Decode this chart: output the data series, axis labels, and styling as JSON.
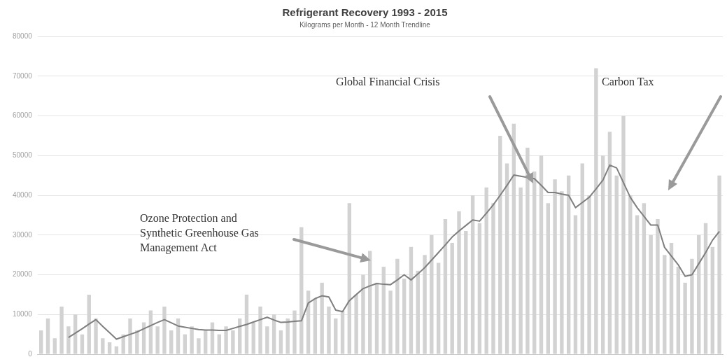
{
  "chart_data": {
    "type": "bar",
    "title": "Refrigerant Recovery 1993 - 2015",
    "subtitle": "Kilograms per Month - 12 Month Trendline",
    "categories": [
      null,
      null,
      null,
      null,
      null,
      null,
      null,
      null,
      null,
      null,
      null,
      null,
      null,
      null,
      null,
      null,
      null,
      null,
      null,
      null,
      null,
      null,
      null,
      null,
      null,
      null,
      null,
      null,
      null,
      null,
      null,
      null,
      null,
      null,
      null,
      null,
      null,
      null,
      null,
      null,
      null,
      null,
      null,
      null,
      null,
      null,
      null,
      null,
      null,
      null,
      null,
      null,
      null,
      null,
      null,
      null,
      null,
      null,
      null,
      null,
      null,
      null,
      null,
      null,
      null,
      null,
      null,
      null,
      null,
      null,
      null,
      null,
      null,
      null,
      null,
      null,
      null,
      null,
      null,
      null,
      null,
      null,
      null,
      null,
      null,
      null,
      null,
      null,
      null,
      null,
      null,
      null,
      null,
      null,
      null,
      null,
      null,
      null,
      null,
      null
    ],
    "series": [
      {
        "color": "#d2d2d2",
        "values": [
          6000,
          9000,
          4000,
          12000,
          7000,
          10000,
          5000,
          15000,
          9000,
          4000,
          3000,
          2000,
          5000,
          9000,
          6000,
          8000,
          11000,
          7000,
          12000,
          6000,
          9000,
          5000,
          7000,
          4000,
          6000,
          8000,
          5000,
          7000,
          6000,
          9000,
          15000,
          8000,
          12000,
          7000,
          10000,
          6000,
          9000,
          11000,
          32000,
          16000,
          14000,
          18000,
          12000,
          9000,
          11000,
          38000,
          15000,
          20000,
          26000,
          18000,
          22000,
          16000,
          24000,
          19000,
          27000,
          21000,
          25000,
          30000,
          23000,
          34000,
          28000,
          36000,
          31000,
          40000,
          33000,
          42000,
          38000,
          55000,
          48000,
          58000,
          42000,
          52000,
          46000,
          50000,
          38000,
          44000,
          41000,
          45000,
          35000,
          48000,
          40000,
          72000,
          50000,
          56000,
          45000,
          60000,
          40000,
          35000,
          38000,
          30000,
          34000,
          25000,
          28000,
          22000,
          18000,
          24000,
          30000,
          33000,
          27000,
          45000
        ]
      },
      {
        "type": "line",
        "color": "#7f7f7f",
        "values": [
          null,
          null,
          null,
          null,
          4200,
          5300,
          6400,
          7600,
          8700,
          7000,
          5400,
          3800,
          4400,
          5000,
          5600,
          6400,
          7200,
          8000,
          8700,
          7900,
          7100,
          6800,
          6500,
          6200,
          6100,
          6100,
          6000,
          6000,
          6500,
          7000,
          7500,
          8100,
          8700,
          9300,
          8600,
          8000,
          8100,
          8300,
          8400,
          12900,
          14000,
          14700,
          14400,
          11100,
          10700,
          13500,
          15000,
          16500,
          17200,
          17800,
          17600,
          17500,
          18700,
          20000,
          18700,
          20200,
          21800,
          23700,
          25600,
          27500,
          29500,
          31000,
          32400,
          33800,
          33500,
          35500,
          37600,
          40000,
          42500,
          45100,
          44800,
          44500,
          44200,
          42500,
          40700,
          40700,
          40300,
          40000,
          36900,
          38200,
          39500,
          41600,
          43800,
          47600,
          46900,
          43200,
          39500,
          36900,
          34700,
          32500,
          32500,
          26900,
          24700,
          22500,
          19600,
          20000,
          22800,
          25600,
          28700,
          30900
        ]
      }
    ],
    "ylim": [
      0,
      80000
    ],
    "yticks": [
      0,
      10000,
      20000,
      30000,
      40000,
      50000,
      60000,
      70000,
      80000
    ],
    "grid": "y",
    "tick_labels": "y",
    "marker": "none",
    "annotations": [
      "Ozone Protection and Synthetic Greenhouse Gas Management Act",
      "Global Financial Crisis",
      "Carbon Tax"
    ]
  }
}
